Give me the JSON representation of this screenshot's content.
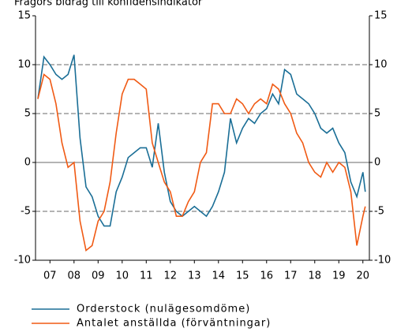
{
  "chart_data": {
    "type": "line",
    "title": "Frågors bidrag till konfidensindikator",
    "x": [
      2007.0,
      2007.25,
      2007.5,
      2007.75,
      2008.0,
      2008.25,
      2008.5,
      2008.75,
      2009.0,
      2009.25,
      2009.5,
      2009.75,
      2010.0,
      2010.25,
      2010.5,
      2010.75,
      2011.0,
      2011.25,
      2011.5,
      2011.75,
      2012.0,
      2012.25,
      2012.5,
      2012.75,
      2013.0,
      2013.25,
      2013.5,
      2013.75,
      2014.0,
      2014.25,
      2014.5,
      2014.75,
      2015.0,
      2015.25,
      2015.5,
      2015.75,
      2016.0,
      2016.25,
      2016.5,
      2016.75,
      2017.0,
      2017.25,
      2017.5,
      2017.75,
      2018.0,
      2018.25,
      2018.5,
      2018.75,
      2019.0,
      2019.25,
      2019.5,
      2019.75,
      2020.0,
      2020.25,
      2020.5,
      2020.6
    ],
    "series": [
      {
        "name": "Orderstock (nulägesomdöme)",
        "color": "#1a6e96",
        "values": [
          6.5,
          10.8,
          10,
          9,
          8.5,
          9,
          11,
          2.5,
          -2.5,
          -3.5,
          -5.5,
          -6.5,
          -6.5,
          -3,
          -1.5,
          0.5,
          1,
          1.5,
          1.5,
          -0.5,
          4,
          -1,
          -4,
          -5,
          -5.5,
          -5,
          -4.5,
          -5,
          -5.5,
          -4.5,
          -3,
          -1,
          4.5,
          2,
          3.5,
          4.5,
          4,
          5,
          5.5,
          7,
          6,
          9.5,
          9,
          7,
          6.5,
          6,
          5,
          3.5,
          3,
          3.5,
          2,
          1,
          -2,
          -3.5,
          -1,
          -3
        ]
      },
      {
        "name": "Antalet anställda (förväntningar)",
        "color": "#f05a14",
        "values": [
          6.5,
          9,
          8.5,
          6,
          2,
          -0.5,
          0,
          -6,
          -9,
          -8.5,
          -6,
          -5,
          -2,
          3,
          7,
          8.5,
          8.5,
          8,
          7.5,
          2,
          0,
          -2,
          -3,
          -5.5,
          -5.5,
          -4,
          -3,
          0,
          1,
          6,
          6,
          5,
          5,
          6.5,
          6,
          5,
          6,
          6.5,
          6,
          8,
          7.5,
          6,
          5,
          3,
          2,
          0,
          -1,
          -1.5,
          0,
          -1,
          0,
          -0.5,
          -3,
          -8.5,
          -5.5,
          -4.5
        ]
      }
    ],
    "xlim": [
      2006.9,
      2020.77
    ],
    "xticks": [
      {
        "value": 2007.5,
        "label": "07"
      },
      {
        "value": 2008.5,
        "label": "08"
      },
      {
        "value": 2009.5,
        "label": "09"
      },
      {
        "value": 2010.5,
        "label": "10"
      },
      {
        "value": 2011.5,
        "label": "11"
      },
      {
        "value": 2012.5,
        "label": "12"
      },
      {
        "value": 2013.5,
        "label": "13"
      },
      {
        "value": 2014.5,
        "label": "14"
      },
      {
        "value": 2015.5,
        "label": "15"
      },
      {
        "value": 2016.5,
        "label": "16"
      },
      {
        "value": 2017.5,
        "label": "17"
      },
      {
        "value": 2018.5,
        "label": "18"
      },
      {
        "value": 2019.5,
        "label": "19"
      },
      {
        "value": 2020.5,
        "label": "20"
      }
    ],
    "ylim": [
      -10,
      15
    ],
    "yticks": [
      15,
      10,
      5,
      0,
      -5,
      -10
    ],
    "y2lim": [
      -10,
      15
    ],
    "y2ticks": [
      15,
      10,
      5,
      0,
      -5,
      -10
    ],
    "grid": true
  }
}
